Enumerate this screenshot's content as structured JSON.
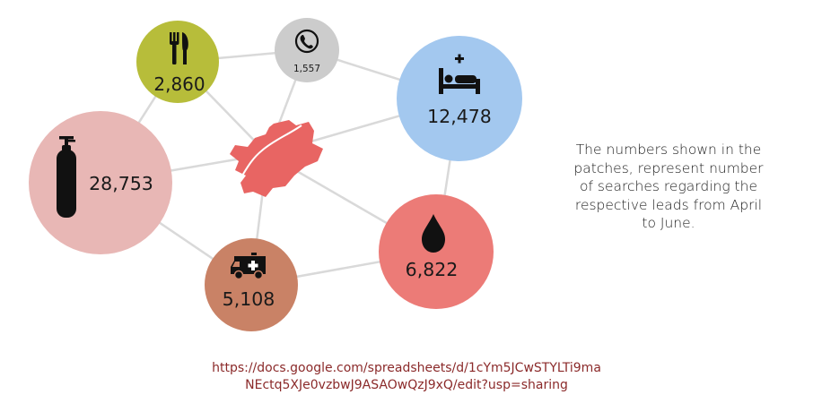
{
  "leads": [
    {
      "id": "food",
      "value": "2,860",
      "icon": "fork-knife-icon",
      "color": "#b7bd3a"
    },
    {
      "id": "phone",
      "value": "1,557",
      "icon": "phone-icon",
      "color": "#cccccc"
    },
    {
      "id": "hospital-bed",
      "value": "12,478",
      "icon": "hospital-bed-icon",
      "color": "#a3c8ef"
    },
    {
      "id": "oxygen",
      "value": "28,753",
      "icon": "oxygen-cylinder-icon",
      "color": "#e8b7b5"
    },
    {
      "id": "blood",
      "value": "6,822",
      "icon": "blood-drop-icon",
      "color": "#ec7b77"
    },
    {
      "id": "ambulance",
      "value": "5,108",
      "icon": "ambulance-icon",
      "color": "#c98266"
    }
  ],
  "center_icon": "map-region-icon",
  "center_color": "#e86563",
  "link_color": "#d9d9d9",
  "note_lines": [
    "The numbers shown in the",
    "patches, represent number",
    "of searches regarding the",
    "respective leads from April",
    "to June."
  ],
  "url_lines": [
    "https://docs.google.com/spreadsheets/d/1cYm5JCwSTYLTi9ma",
    "NEctq5XJe0vzbwJ9ASAOwQzJ9xQ/edit?usp=sharing"
  ]
}
